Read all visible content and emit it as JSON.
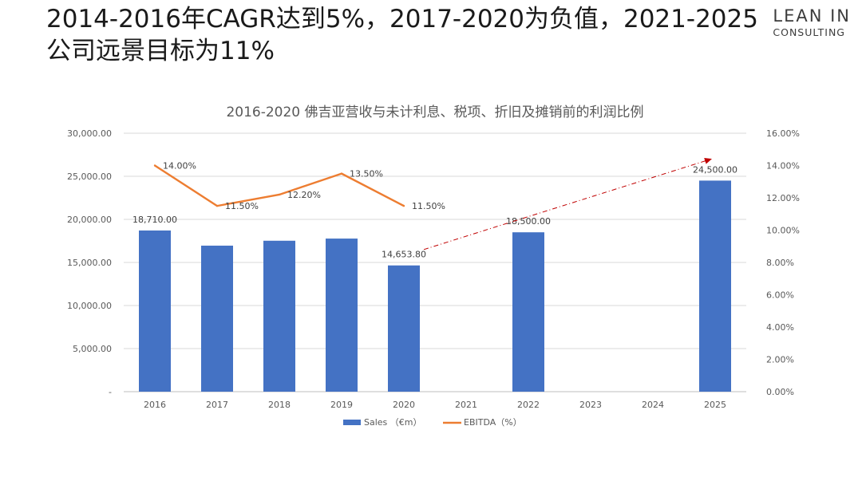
{
  "slide": {
    "title_line1": "2014-2016年CAGR达到5%，2017-2020为负值，2021-2025",
    "title_line2": "公司远景目标为11%",
    "logo_line1": "LEAN IN",
    "logo_line2": "CONSULTING"
  },
  "chart_data": {
    "type": "bar",
    "title": "2016-2020 佛吉亚营收与未计利息、税项、折旧及摊销前的利润比例",
    "categories": [
      "2016",
      "2017",
      "2018",
      "2019",
      "2020",
      "2021",
      "2022",
      "2023",
      "2024",
      "2025"
    ],
    "series": [
      {
        "name": "Sales （€m）",
        "type": "bar",
        "axis": "left",
        "color": "#4472C4",
        "values": [
          18710,
          16950,
          17520,
          17770,
          14653.8,
          null,
          18500,
          null,
          null,
          24500
        ],
        "labels": [
          "18,710.00",
          "",
          "",
          "",
          "14,653.80",
          "",
          "18,500.00",
          "",
          "",
          "24,500.00"
        ]
      },
      {
        "name": "EBITDA（%）",
        "type": "line",
        "axis": "right",
        "color": "#ED7D31",
        "values": [
          14.0,
          11.5,
          12.2,
          13.5,
          11.5,
          null,
          null,
          null,
          null,
          null
        ],
        "labels": [
          "14.00%",
          "11.50%",
          "12.20%",
          "13.50%",
          "11.50%",
          "",
          "",
          "",
          "",
          ""
        ]
      }
    ],
    "left_axis": {
      "ylim": [
        0,
        30000
      ],
      "ticks": [
        "-",
        "5,000.00",
        "10,000.00",
        "15,000.00",
        "20,000.00",
        "25,000.00",
        "30,000.00"
      ]
    },
    "right_axis": {
      "ylim": [
        0,
        16
      ],
      "ticks": [
        "0.00%",
        "2.00%",
        "4.00%",
        "6.00%",
        "8.00%",
        "10.00%",
        "12.00%",
        "14.00%",
        "16.00%"
      ]
    },
    "trend_arrow": {
      "from": {
        "category": "2020",
        "value": 16500
      },
      "to": {
        "category": "2025",
        "value": 27000
      },
      "color": "#C00000",
      "style": "dash-dot"
    },
    "grid": true,
    "legend_position": "bottom"
  }
}
